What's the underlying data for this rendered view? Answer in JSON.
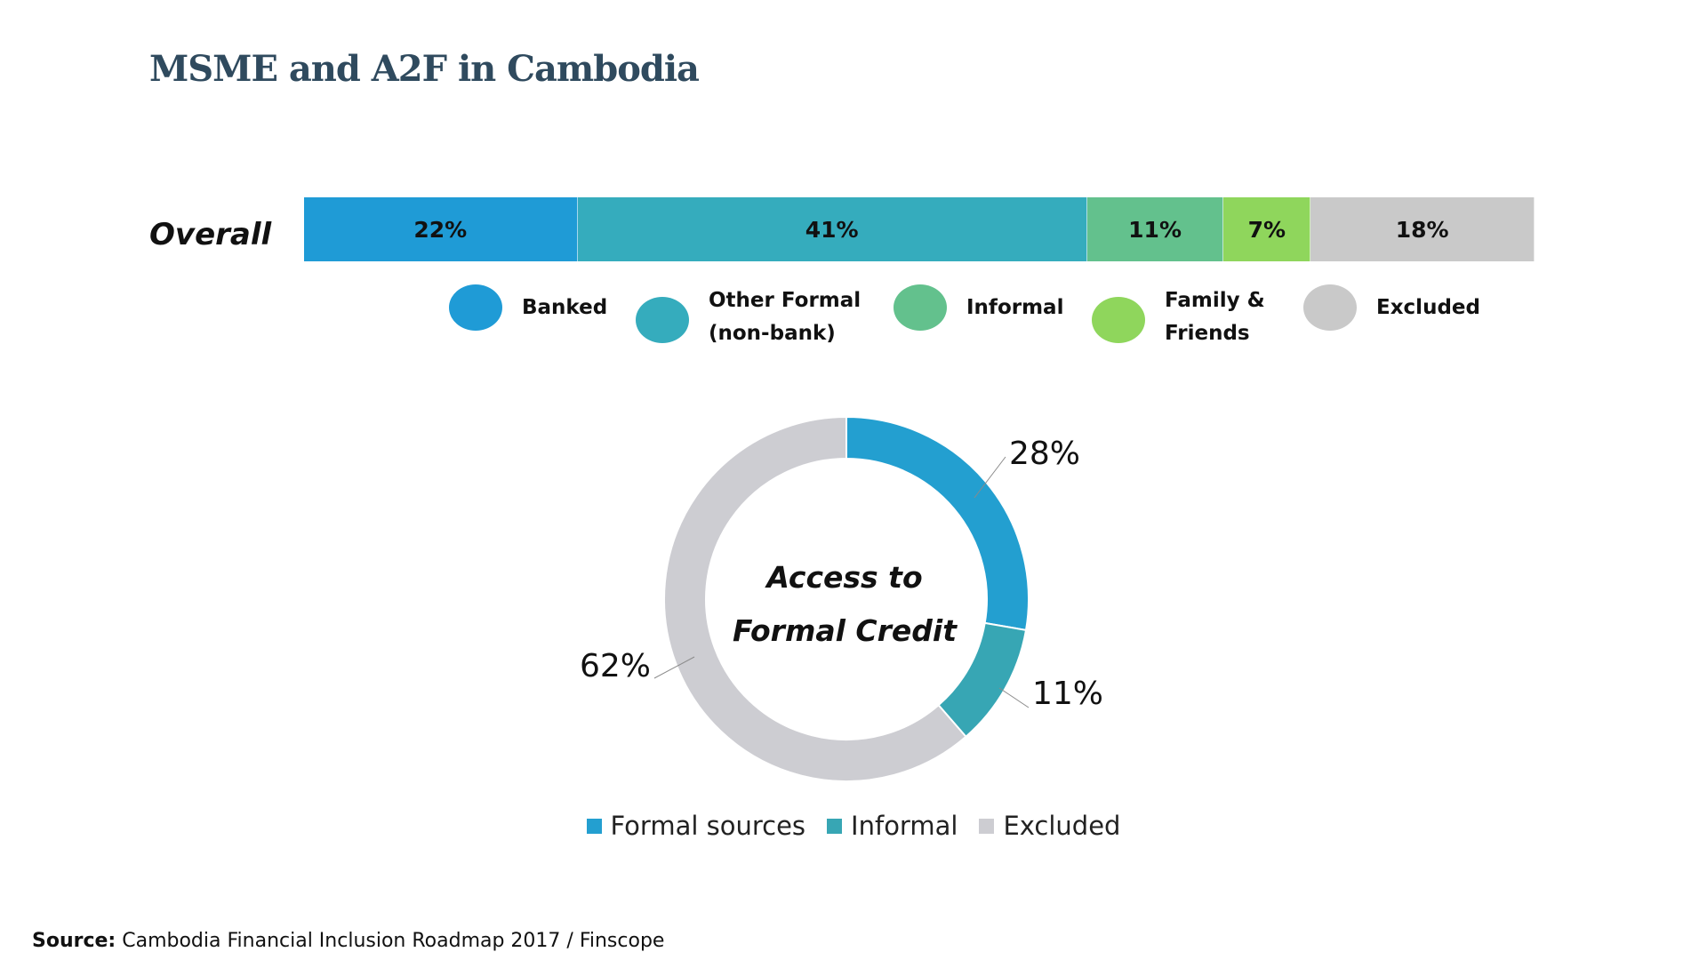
{
  "title": "MSME and A2F in Cambodia",
  "chart_data": [
    {
      "type": "bar",
      "orientation": "horizontal-stacked",
      "categories": [
        "Overall"
      ],
      "series": [
        {
          "name": "Banked",
          "values": [
            22
          ],
          "label": "22%",
          "color": "#1f9bd6"
        },
        {
          "name": "Other Formal\n(non-bank)",
          "values": [
            41
          ],
          "label": "41%",
          "color": "#35acbd"
        },
        {
          "name": "Informal",
          "values": [
            11
          ],
          "label": "11%",
          "color": "#63c18d"
        },
        {
          "name": "Family &\nFriends",
          "values": [
            7
          ],
          "label": "7%",
          "color": "#8fd65c"
        },
        {
          "name": "Excluded",
          "values": [
            18
          ],
          "label": "18%",
          "color": "#c9c9c9"
        }
      ],
      "legend_placement": "bottom"
    },
    {
      "type": "pie",
      "style": "donut",
      "center_label": [
        "Access to",
        "Formal Credit"
      ],
      "slices": [
        {
          "name": "Formal sources",
          "value": 28,
          "label": "28%",
          "color": "#239fd0"
        },
        {
          "name": "Informal",
          "value": 11,
          "label": "11%",
          "color": "#37a6b4"
        },
        {
          "name": "Excluded",
          "value": 62,
          "label": "62%",
          "color": "#cdcdd2"
        }
      ],
      "legend_placement": "bottom"
    }
  ],
  "source": {
    "prefix": "Source:",
    "text": " Cambodia Financial Inclusion Roadmap 2017 / Finscope"
  }
}
